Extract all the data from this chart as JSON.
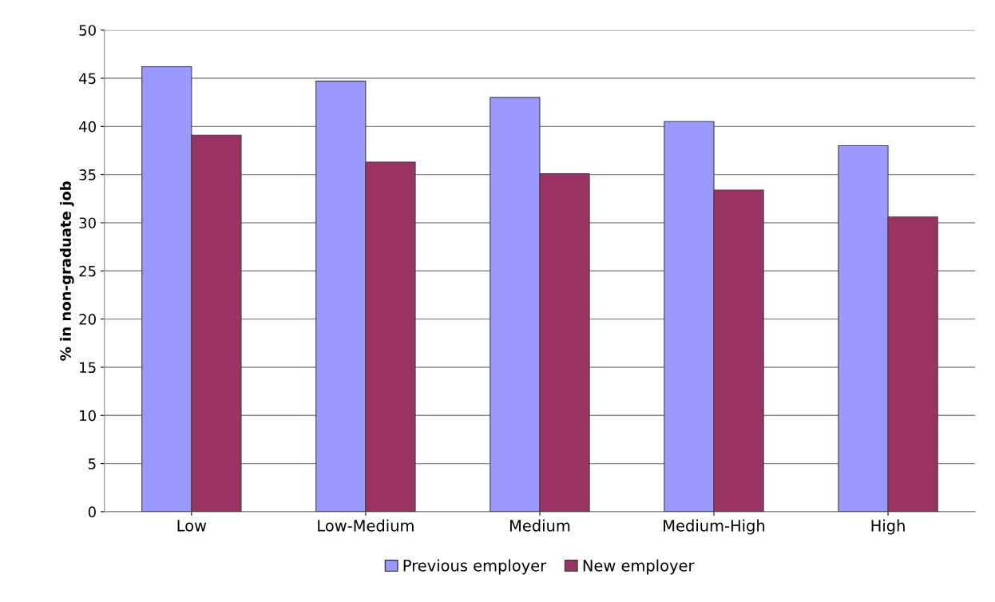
{
  "chart_data": {
    "type": "bar",
    "ylabel": "% in non-graduate job",
    "categories": [
      "Low",
      "Low-Medium",
      "Medium",
      "Medium-High",
      "High"
    ],
    "series": [
      {
        "name": "Previous employer",
        "color": "#9999ff",
        "values": [
          46.2,
          44.7,
          43.0,
          40.5,
          38.0
        ]
      },
      {
        "name": "New employer",
        "color": "#993366",
        "values": [
          39.1,
          36.3,
          35.1,
          33.4,
          30.6
        ]
      }
    ],
    "ylim": [
      0,
      50
    ],
    "yticks": [
      0,
      5,
      10,
      15,
      20,
      25,
      30,
      35,
      40,
      45,
      50
    ],
    "grid": "y",
    "legend": "bottom"
  }
}
